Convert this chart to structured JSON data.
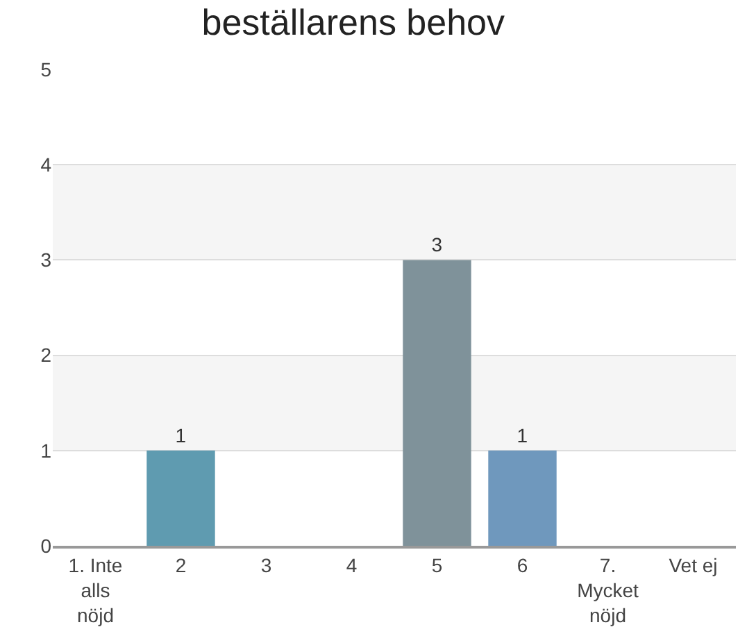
{
  "chart_data": {
    "type": "bar",
    "title": "beställarens behov",
    "categories": [
      "1. Inte alls nöjd",
      "2",
      "3",
      "4",
      "5",
      "6",
      "7. Mycket nöjd",
      "Vet ej"
    ],
    "values": [
      0,
      1,
      0,
      0,
      3,
      1,
      0,
      0
    ],
    "colors": [
      "#5f9bb0",
      "#5f9bb0",
      "#5f9bb0",
      "#5f9bb0",
      "#7f929a",
      "#6f98bd",
      "#5f9bb0",
      "#5f9bb0"
    ],
    "value_labels": [
      null,
      "1",
      null,
      null,
      "3",
      "1",
      null,
      null
    ],
    "ylim": [
      0,
      5
    ],
    "yticks": [
      0,
      1,
      2,
      3,
      4,
      5
    ],
    "grid": "y",
    "bands": [
      {
        "axis": "y",
        "from": 1,
        "to": 2,
        "color": "#f5f5f5"
      },
      {
        "axis": "y",
        "from": 3,
        "to": 4,
        "color": "#f5f5f5"
      }
    ]
  }
}
